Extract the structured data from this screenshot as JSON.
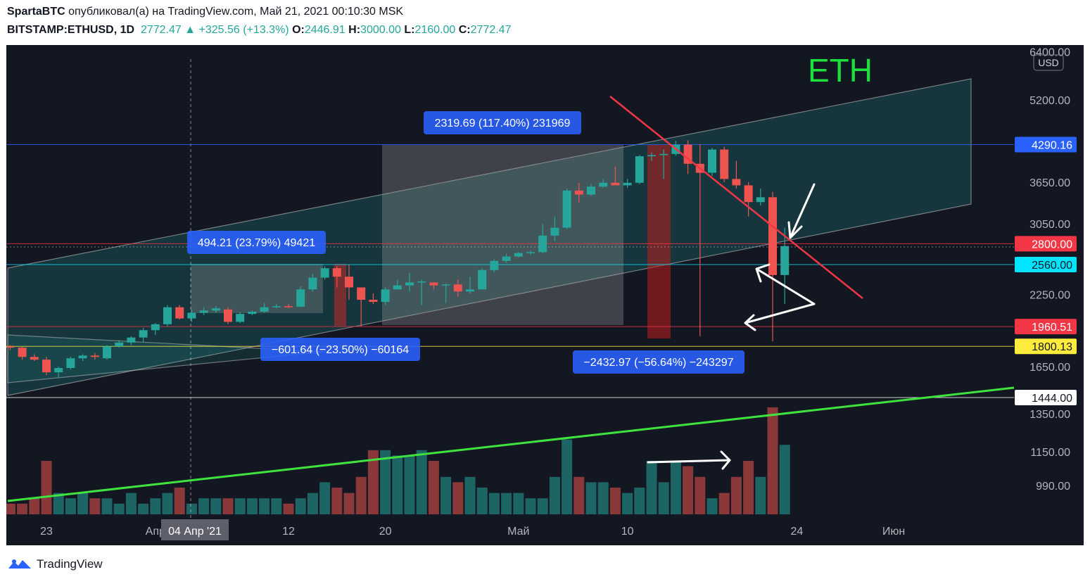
{
  "header": {
    "author": "SpartaBTC",
    "published_text": "опубликовал(а) на TradingView.com, Май 21, 2021 00:10:30 MSK",
    "symbol": "BITSTAMP:ETHUSD, 1D",
    "last_price": "2772.47",
    "change_arrow": "▲",
    "change": "+325.56 (+13.3%)",
    "o_label": "O:",
    "o_value": "2446.91",
    "h_label": "H:",
    "h_value": "3000.00",
    "l_label": "L:",
    "l_value": "2160.00",
    "c_label": "C:",
    "c_value": "2772.47"
  },
  "footer": {
    "brand": "TradingView",
    "logo_icon": "tradingview-logo-icon"
  },
  "chart_data": {
    "type": "candlestick",
    "symbol": "ETH",
    "currency_badge": "USD",
    "y_scale": "log",
    "ylim": [
      1444,
      6400
    ],
    "y_ticks": [
      {
        "label": "6400.00",
        "value": 6400
      },
      {
        "label": "5200.00",
        "value": 5200
      },
      {
        "label": "3650.00",
        "value": 3650
      },
      {
        "label": "3050.00",
        "value": 3050
      },
      {
        "label": "2250.00",
        "value": 2250
      },
      {
        "label": "1650.00",
        "value": 1650
      }
    ],
    "x_ticks": [
      {
        "label": "23",
        "date": "2021-03-23"
      },
      {
        "label": "Апр",
        "date": "2021-04-01"
      },
      {
        "label": "12",
        "date": "2021-04-12"
      },
      {
        "label": "20",
        "date": "2021-04-20"
      },
      {
        "label": "Май",
        "date": "2021-05-01"
      },
      {
        "label": "10",
        "date": "2021-05-10"
      },
      {
        "label": "24",
        "date": "2021-05-24"
      },
      {
        "label": "Июн",
        "date": "2021-06-01"
      }
    ],
    "crosshair_date_label": "04 Апр '21",
    "price_labels": [
      {
        "value": "4290.16",
        "price": 4290.16,
        "color": "#2962ff"
      },
      {
        "value": "2800.00",
        "price": 2800,
        "color": "#f23645"
      },
      {
        "value": "2560.00",
        "price": 2560,
        "color": "#00e5ff"
      },
      {
        "value": "1960.51",
        "price": 1960.51,
        "color": "#f23645"
      },
      {
        "value": "1800.13",
        "price": 1800.13,
        "color": "#ffeb3b"
      },
      {
        "value": "1444.00",
        "price": 1444,
        "color": "#ffffff"
      }
    ],
    "volume_axis_ticks": [
      {
        "label": "1350.00"
      },
      {
        "label": "1150.00"
      },
      {
        "label": "990.00"
      }
    ],
    "measurements": [
      {
        "text": "2319.69 (117.40%) 231969"
      },
      {
        "text": "494.21 (23.79%) 49421"
      },
      {
        "text": "−601.64 (−23.50%) −60164"
      },
      {
        "text": "−2432.97 (−56.64%) −243297"
      }
    ],
    "candles": [
      {
        "date": "2021-03-19",
        "o": 1810,
        "h": 1830,
        "l": 1780,
        "c": 1800
      },
      {
        "date": "2021-03-20",
        "o": 1800,
        "h": 1810,
        "l": 1770,
        "c": 1790
      },
      {
        "date": "2021-03-21",
        "o": 1790,
        "h": 1800,
        "l": 1700,
        "c": 1720
      },
      {
        "date": "2021-03-22",
        "o": 1720,
        "h": 1740,
        "l": 1690,
        "c": 1700
      },
      {
        "date": "2021-03-23",
        "o": 1700,
        "h": 1720,
        "l": 1590,
        "c": 1610
      },
      {
        "date": "2021-03-24",
        "o": 1610,
        "h": 1650,
        "l": 1570,
        "c": 1640
      },
      {
        "date": "2021-03-25",
        "o": 1640,
        "h": 1720,
        "l": 1630,
        "c": 1710
      },
      {
        "date": "2021-03-26",
        "o": 1710,
        "h": 1740,
        "l": 1690,
        "c": 1730
      },
      {
        "date": "2021-03-27",
        "o": 1730,
        "h": 1750,
        "l": 1700,
        "c": 1720
      },
      {
        "date": "2021-03-28",
        "o": 1710,
        "h": 1810,
        "l": 1700,
        "c": 1800
      },
      {
        "date": "2021-03-29",
        "o": 1800,
        "h": 1850,
        "l": 1790,
        "c": 1830
      },
      {
        "date": "2021-03-30",
        "o": 1830,
        "h": 1880,
        "l": 1810,
        "c": 1870
      },
      {
        "date": "2021-03-31",
        "o": 1870,
        "h": 1950,
        "l": 1830,
        "c": 1930
      },
      {
        "date": "2021-04-01",
        "o": 1930,
        "h": 1990,
        "l": 1890,
        "c": 1980
      },
      {
        "date": "2021-04-02",
        "o": 1980,
        "h": 2150,
        "l": 1960,
        "c": 2130
      },
      {
        "date": "2021-04-03",
        "o": 2130,
        "h": 2150,
        "l": 2020,
        "c": 2030
      },
      {
        "date": "2021-04-04",
        "o": 2030,
        "h": 2110,
        "l": 2000,
        "c": 2080
      },
      {
        "date": "2021-04-05",
        "o": 2080,
        "h": 2130,
        "l": 2060,
        "c": 2100
      },
      {
        "date": "2021-04-06",
        "o": 2100,
        "h": 2140,
        "l": 2080,
        "c": 2120
      },
      {
        "date": "2021-04-07",
        "o": 2110,
        "h": 2130,
        "l": 1980,
        "c": 2000
      },
      {
        "date": "2021-04-08",
        "o": 2000,
        "h": 2090,
        "l": 1990,
        "c": 2070
      },
      {
        "date": "2021-04-09",
        "o": 2070,
        "h": 2100,
        "l": 2060,
        "c": 2090
      },
      {
        "date": "2021-04-10",
        "o": 2090,
        "h": 2170,
        "l": 2080,
        "c": 2130
      },
      {
        "date": "2021-04-11",
        "o": 2130,
        "h": 2160,
        "l": 2120,
        "c": 2140
      },
      {
        "date": "2021-04-12",
        "o": 2140,
        "h": 2160,
        "l": 2120,
        "c": 2135
      },
      {
        "date": "2021-04-13",
        "o": 2135,
        "h": 2330,
        "l": 2130,
        "c": 2300
      },
      {
        "date": "2021-04-14",
        "o": 2300,
        "h": 2460,
        "l": 2280,
        "c": 2420
      },
      {
        "date": "2021-04-15",
        "o": 2420,
        "h": 2540,
        "l": 2400,
        "c": 2520
      },
      {
        "date": "2021-04-16",
        "o": 2520,
        "h": 2540,
        "l": 2320,
        "c": 2430
      },
      {
        "date": "2021-04-17",
        "o": 2430,
        "h": 2560,
        "l": 2200,
        "c": 2320
      },
      {
        "date": "2021-04-18",
        "o": 2320,
        "h": 2320,
        "l": 1960,
        "c": 2200
      },
      {
        "date": "2021-04-19",
        "o": 2200,
        "h": 2260,
        "l": 2160,
        "c": 2180
      },
      {
        "date": "2021-04-20",
        "o": 2180,
        "h": 2320,
        "l": 2150,
        "c": 2300
      },
      {
        "date": "2021-04-21",
        "o": 2300,
        "h": 2400,
        "l": 2310,
        "c": 2340
      },
      {
        "date": "2021-04-22",
        "o": 2340,
        "h": 2470,
        "l": 2280,
        "c": 2370
      },
      {
        "date": "2021-04-23",
        "o": 2370,
        "h": 2400,
        "l": 2150,
        "c": 2380
      },
      {
        "date": "2021-04-24",
        "o": 2370,
        "h": 2360,
        "l": 2300,
        "c": 2340
      },
      {
        "date": "2021-04-25",
        "o": 2340,
        "h": 2360,
        "l": 2170,
        "c": 2350
      },
      {
        "date": "2021-04-26",
        "o": 2350,
        "h": 2400,
        "l": 2230,
        "c": 2280
      },
      {
        "date": "2021-04-27",
        "o": 2280,
        "h": 2430,
        "l": 2260,
        "c": 2300
      },
      {
        "date": "2021-04-28",
        "o": 2300,
        "h": 2520,
        "l": 2300,
        "c": 2500
      },
      {
        "date": "2021-04-29",
        "o": 2500,
        "h": 2620,
        "l": 2480,
        "c": 2600
      },
      {
        "date": "2021-04-30",
        "o": 2600,
        "h": 2680,
        "l": 2580,
        "c": 2650
      },
      {
        "date": "2021-05-01",
        "o": 2650,
        "h": 2700,
        "l": 2640,
        "c": 2690
      },
      {
        "date": "2021-05-02",
        "o": 2690,
        "h": 2720,
        "l": 2670,
        "c": 2700
      },
      {
        "date": "2021-05-03",
        "o": 2700,
        "h": 3050,
        "l": 2690,
        "c": 2900
      },
      {
        "date": "2021-05-04",
        "o": 2900,
        "h": 3150,
        "l": 2830,
        "c": 3000
      },
      {
        "date": "2021-05-05",
        "o": 3000,
        "h": 3550,
        "l": 2980,
        "c": 3520
      },
      {
        "date": "2021-05-06",
        "o": 3520,
        "h": 3640,
        "l": 3340,
        "c": 3460
      },
      {
        "date": "2021-05-07",
        "o": 3460,
        "h": 3620,
        "l": 3440,
        "c": 3580
      },
      {
        "date": "2021-05-08",
        "o": 3580,
        "h": 3700,
        "l": 3560,
        "c": 3640
      },
      {
        "date": "2021-05-09",
        "o": 3640,
        "h": 3900,
        "l": 3600,
        "c": 3600
      },
      {
        "date": "2021-05-10",
        "o": 3600,
        "h": 3700,
        "l": 3560,
        "c": 3640
      },
      {
        "date": "2021-05-11",
        "o": 3640,
        "h": 4100,
        "l": 3620,
        "c": 4080
      },
      {
        "date": "2021-05-12",
        "o": 4080,
        "h": 4150,
        "l": 4000,
        "c": 4100
      },
      {
        "date": "2021-05-13",
        "o": 4100,
        "h": 4200,
        "l": 3700,
        "c": 4120
      },
      {
        "date": "2021-05-14",
        "o": 4120,
        "h": 4360,
        "l": 4090,
        "c": 4290
      },
      {
        "date": "2021-05-15",
        "o": 4290,
        "h": 4370,
        "l": 3780,
        "c": 3950
      },
      {
        "date": "2021-05-16",
        "o": 3950,
        "h": 4300,
        "l": 1880,
        "c": 3800
      },
      {
        "date": "2021-05-17",
        "o": 3800,
        "h": 4230,
        "l": 3750,
        "c": 4200
      },
      {
        "date": "2021-05-18",
        "o": 4200,
        "h": 4250,
        "l": 3650,
        "c": 3700
      },
      {
        "date": "2021-05-19",
        "o": 3700,
        "h": 4000,
        "l": 3550,
        "c": 3600
      },
      {
        "date": "2021-05-20",
        "o": 3600,
        "h": 3650,
        "l": 3150,
        "c": 3350
      },
      {
        "date": "2021-05-21",
        "o": 3350,
        "h": 3550,
        "l": 3300,
        "c": 3420
      },
      {
        "date": "2021-05-22",
        "o": 3420,
        "h": 3500,
        "l": 1840,
        "c": 2446.91
      },
      {
        "date": "2021-05-23",
        "o": 2446.91,
        "h": 3000,
        "l": 2160,
        "c": 2772.47
      }
    ],
    "volumes": [
      2,
      2,
      2,
      3,
      10,
      4,
      3,
      4,
      3,
      3,
      2,
      4,
      2,
      3,
      4,
      5,
      2,
      3,
      3,
      3,
      3,
      3,
      3,
      3,
      2,
      3,
      4,
      6,
      5,
      4,
      7,
      12,
      12,
      11,
      11,
      12,
      10,
      7,
      6,
      7,
      5,
      4,
      4,
      4,
      3,
      3,
      7,
      14,
      7,
      6,
      6,
      5,
      4,
      5,
      10,
      6,
      10,
      9,
      7,
      3,
      4,
      7,
      10,
      7,
      20,
      13
    ],
    "annotations": {
      "label": "ETH"
    }
  }
}
